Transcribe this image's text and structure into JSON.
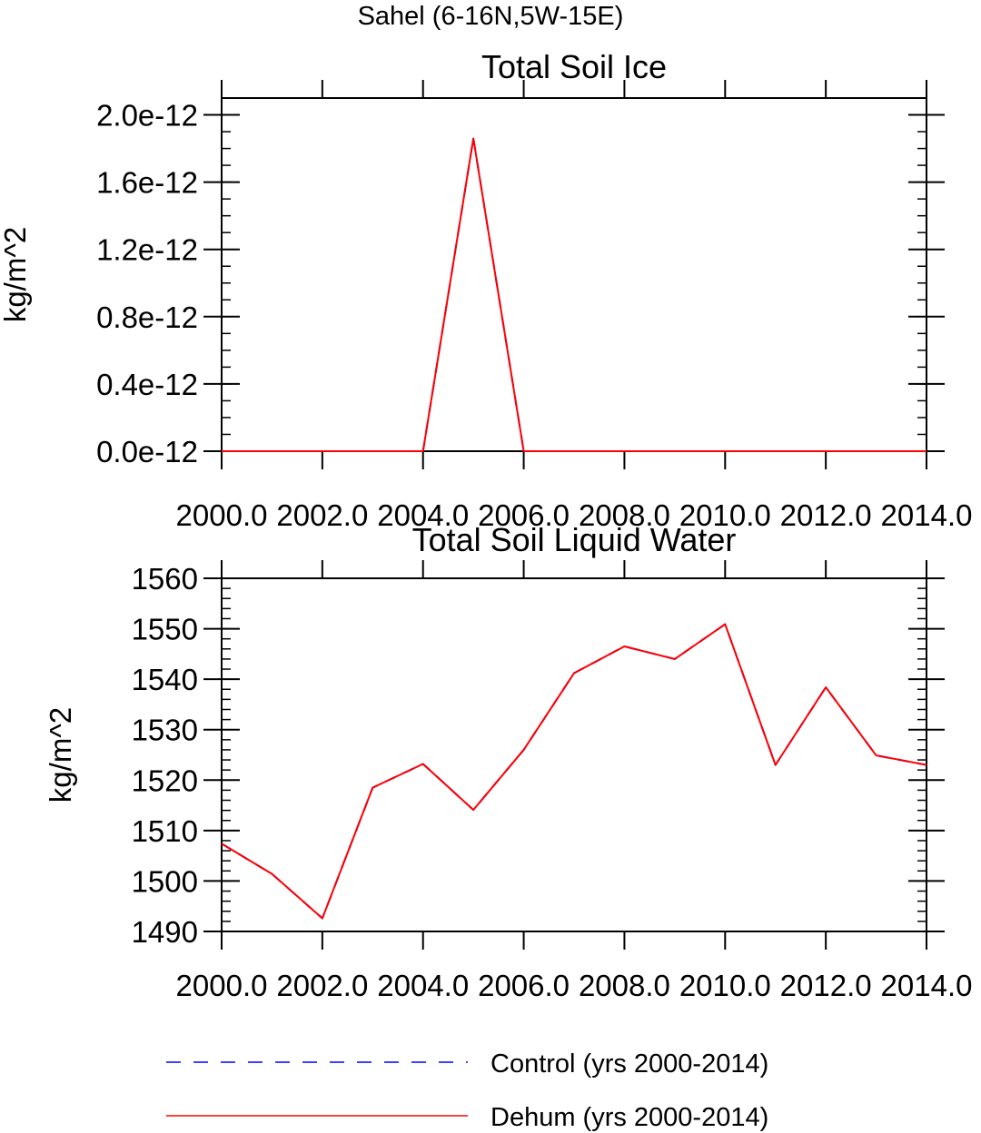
{
  "suptitle": "Sahel (6-16N,5W-15E)",
  "colors": {
    "control": "#0000ff",
    "dehum": "#ff0000",
    "axis": "#000000"
  },
  "chart_data": [
    {
      "type": "line",
      "title": "Total Soil Ice",
      "xlabel": "",
      "ylabel": "kg/m^2",
      "xlim": [
        2000,
        2014
      ],
      "ylim": [
        0,
        2.1e-12
      ],
      "x_ticks": [
        2000,
        2002,
        2004,
        2006,
        2008,
        2010,
        2012,
        2014
      ],
      "x_tick_labels": [
        "2000.0",
        "2002.0",
        "2004.0",
        "2006.0",
        "2008.0",
        "2010.0",
        "2012.0",
        "2014.0"
      ],
      "y_ticks": [
        0,
        4e-13,
        8e-13,
        1.2e-12,
        1.6e-12,
        2e-12
      ],
      "y_tick_labels": [
        "0.0e-12",
        "0.4e-12",
        "0.8e-12",
        "1.2e-12",
        "1.6e-12",
        "2.0e-12"
      ],
      "y_minor_step": 1e-13,
      "x": [
        2000,
        2001,
        2002,
        2003,
        2004,
        2005,
        2006,
        2007,
        2008,
        2009,
        2010,
        2011,
        2012,
        2013,
        2014
      ],
      "series": [
        {
          "name": "Control (yrs 2000-2014)",
          "style": "dashed",
          "color": "#0000ff",
          "values": [
            0,
            0,
            0,
            0,
            0,
            1.86e-12,
            0,
            0,
            0,
            0,
            0,
            0,
            0,
            0,
            0
          ]
        },
        {
          "name": "Dehum (yrs 2000-2014)",
          "style": "solid",
          "color": "#ff0000",
          "values": [
            0,
            0,
            0,
            0,
            0,
            1.86e-12,
            0,
            0,
            0,
            0,
            0,
            0,
            0,
            0,
            0
          ]
        }
      ]
    },
    {
      "type": "line",
      "title": "Total Soil Liquid Water",
      "xlabel": "",
      "ylabel": "kg/m^2",
      "xlim": [
        2000,
        2014
      ],
      "ylim": [
        1490,
        1560
      ],
      "x_ticks": [
        2000,
        2002,
        2004,
        2006,
        2008,
        2010,
        2012,
        2014
      ],
      "x_tick_labels": [
        "2000.0",
        "2002.0",
        "2004.0",
        "2006.0",
        "2008.0",
        "2010.0",
        "2012.0",
        "2014.0"
      ],
      "y_ticks": [
        1490,
        1500,
        1510,
        1520,
        1530,
        1540,
        1550,
        1560
      ],
      "y_tick_labels": [
        "1490",
        "1500",
        "1510",
        "1520",
        "1530",
        "1540",
        "1550",
        "1560"
      ],
      "y_minor_step": 2,
      "x": [
        2000,
        2001,
        2002,
        2003,
        2004,
        2005,
        2006,
        2007,
        2008,
        2009,
        2010,
        2011,
        2012,
        2013,
        2014
      ],
      "series": [
        {
          "name": "Control (yrs 2000-2014)",
          "style": "dashed",
          "color": "#0000ff",
          "values": [
            1507.4,
            1501.4,
            1492.6,
            1518.5,
            1523.2,
            1514.1,
            1526.0,
            1541.2,
            1546.5,
            1544.0,
            1550.9,
            1523.0,
            1538.4,
            1524.9,
            1523.0
          ]
        },
        {
          "name": "Dehum (yrs 2000-2014)",
          "style": "solid",
          "color": "#ff0000",
          "values": [
            1507.4,
            1501.4,
            1492.6,
            1518.5,
            1523.2,
            1514.1,
            1526.0,
            1541.2,
            1546.5,
            1544.0,
            1550.9,
            1523.0,
            1538.4,
            1524.9,
            1523.0
          ]
        }
      ]
    }
  ],
  "legend": {
    "placement": "bottom",
    "entries": [
      {
        "label": "Control (yrs 2000-2014)",
        "style": "dashed",
        "color": "#0000ff"
      },
      {
        "label": "Dehum (yrs 2000-2014)",
        "style": "solid",
        "color": "#ff0000"
      }
    ]
  }
}
